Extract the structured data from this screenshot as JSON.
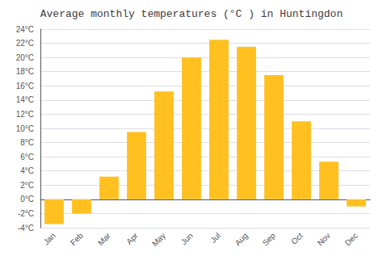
{
  "chart_data": {
    "type": "bar",
    "title": "Average monthly temperatures (°C ) in Huntingdon",
    "categories": [
      "Jan",
      "Feb",
      "Mar",
      "Apr",
      "May",
      "Jun",
      "Jul",
      "Aug",
      "Sep",
      "Oct",
      "Nov",
      "Dec"
    ],
    "values": [
      -3.5,
      -2.0,
      3.2,
      9.5,
      15.2,
      20.0,
      22.5,
      21.5,
      17.5,
      11.0,
      5.3,
      -1.0
    ],
    "color": "#FFC020",
    "ylim": [
      -4,
      24
    ],
    "yticks": [
      {
        "value": -4,
        "label": "-4°C"
      },
      {
        "value": -2,
        "label": "-2°C"
      },
      {
        "value": 0,
        "label": "0°C"
      },
      {
        "value": 2,
        "label": "2°C"
      },
      {
        "value": 4,
        "label": "4°C"
      },
      {
        "value": 6,
        "label": "6°C"
      },
      {
        "value": 8,
        "label": "8°C"
      },
      {
        "value": 10,
        "label": "10°C"
      },
      {
        "value": 12,
        "label": "12°C"
      },
      {
        "value": 14,
        "label": "14°C"
      },
      {
        "value": 16,
        "label": "16°C"
      },
      {
        "value": 18,
        "label": "18°C"
      },
      {
        "value": 20,
        "label": "20°C"
      },
      {
        "value": 22,
        "label": "22°C"
      },
      {
        "value": 24,
        "label": "24°C"
      }
    ],
    "grid": true
  }
}
